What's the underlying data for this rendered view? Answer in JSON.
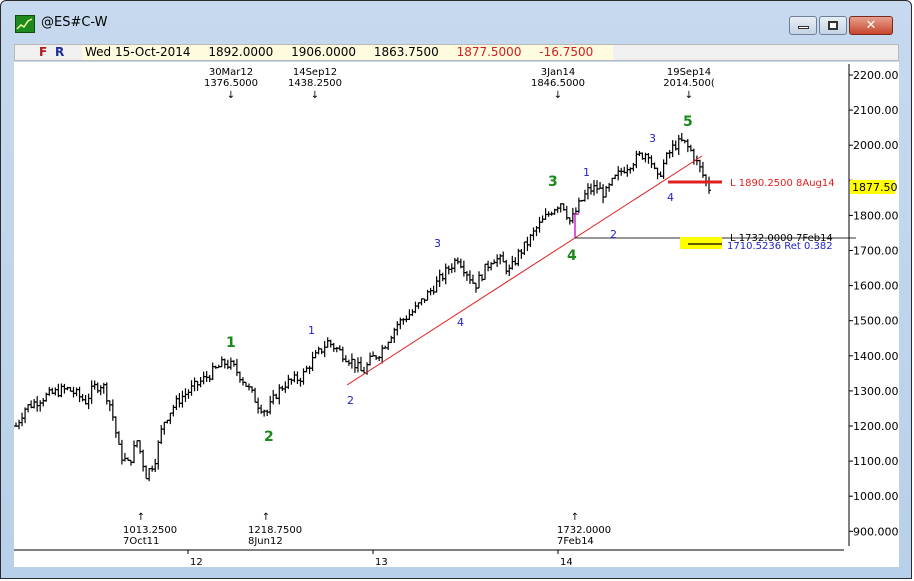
{
  "window": {
    "title": "@ES#C-W",
    "buttons": {
      "minimize": "minimize",
      "maximize": "maximize",
      "close": "close"
    }
  },
  "infobar": {
    "f_label": "F",
    "r_label": "R",
    "date": "Wed 15-Oct-2014",
    "open": "1892.0000",
    "high": "1906.0000",
    "low": "1863.7500",
    "close": "1877.5000",
    "change": "-16.7500"
  },
  "colors": {
    "bars": "#000000",
    "trendline": "#e02020",
    "wave_primary": "#1a8a1a",
    "wave_minor": "#2222cc",
    "last_price_bg": "#ffff00",
    "magenta_marker": "#d020d0"
  },
  "chart_data": {
    "type": "ohlc",
    "title": "@ES#C-W",
    "xlabel": "",
    "ylabel": "",
    "ylim": [
      900,
      2200
    ],
    "y_ticks": [
      "2200.00",
      "2100.00",
      "2000.00",
      "1900.00",
      "1800.00",
      "1700.00",
      "1600.00",
      "1500.00",
      "1400.00",
      "1300.00",
      "1200.00",
      "1100.00",
      "1000.00",
      "900.000"
    ],
    "x_ticks": [
      "12",
      "13",
      "14"
    ],
    "last_price": "1877.50",
    "grid": false,
    "swing_highs": [
      {
        "date": "30Mar12",
        "price": "1376.5000"
      },
      {
        "date": "14Sep12",
        "price": "1438.2500"
      },
      {
        "date": "3Jan14",
        "price": "1846.5000"
      },
      {
        "date": "19Sep14",
        "price": "2014.500("
      }
    ],
    "swing_lows": [
      {
        "price": "1013.2500",
        "date": "7Oct11"
      },
      {
        "price": "1218.7500",
        "date": "8Jun12"
      },
      {
        "price": "1732.0000",
        "date": "7Feb14"
      }
    ],
    "horizontal_levels": [
      {
        "label": "L 1890.2500 8Aug14",
        "price": 1890.25,
        "color": "#e02020"
      },
      {
        "label": "L 1732.0000 7Feb14",
        "price": 1732.0,
        "color": "#000000"
      },
      {
        "label": "1710.5236 Ret 0.382",
        "price": 1710.52,
        "color": "#2222cc"
      }
    ],
    "wave_labels_primary": [
      "1",
      "2",
      "3",
      "4",
      "5"
    ],
    "wave_labels_minor": [
      "1",
      "2",
      "3",
      "4",
      "1",
      "2",
      "3",
      "4"
    ],
    "approx_weekly_closes": [
      1200,
      1250,
      1265,
      1280,
      1290,
      1300,
      1305,
      1290,
      1270,
      1310,
      1320,
      1250,
      1120,
      1090,
      1160,
      1060,
      1100,
      1210,
      1250,
      1280,
      1300,
      1320,
      1340,
      1360,
      1380,
      1370,
      1340,
      1300,
      1260,
      1240,
      1290,
      1320,
      1330,
      1340,
      1380,
      1410,
      1440,
      1420,
      1400,
      1380,
      1350,
      1390,
      1410,
      1450,
      1490,
      1510,
      1530,
      1560,
      1590,
      1620,
      1650,
      1680,
      1640,
      1600,
      1640,
      1680,
      1670,
      1640,
      1690,
      1720,
      1760,
      1790,
      1820,
      1840,
      1780,
      1830,
      1870,
      1880,
      1860,
      1900,
      1930,
      1950,
      1970,
      1980,
      1900,
      1960,
      2000,
      2010,
      1980,
      1930,
      1877.5
    ]
  },
  "annotations": {
    "top": [
      {
        "line1": "30Mar12",
        "line2": "1376.5000",
        "arrow": "↓"
      },
      {
        "line1": "14Sep12",
        "line2": "1438.2500",
        "arrow": "↓"
      },
      {
        "line1": "3Jan14",
        "line2": "1846.5000",
        "arrow": "↓"
      },
      {
        "line1": "19Sep14",
        "line2": "2014.500(",
        "arrow": "↓"
      }
    ],
    "bottom": [
      {
        "line1": "1013.2500",
        "line2": "7Oct11",
        "arrow": "↑"
      },
      {
        "line1": "1218.7500",
        "line2": "8Jun12",
        "arrow": "↑"
      },
      {
        "line1": "1732.0000",
        "line2": "7Feb14",
        "arrow": "↑"
      }
    ],
    "levels": {
      "red": "L 1890.2500 8Aug14",
      "black": "L 1732.0000 7Feb14",
      "blue": "1710.5236 Ret 0.382"
    },
    "waves": {
      "p1": "1",
      "p2": "2",
      "p3": "3",
      "p4": "4",
      "p5": "5",
      "m1a": "1",
      "m2a": "2",
      "m3a": "3",
      "m4a": "4",
      "m1b": "1",
      "m2b": "2",
      "m3b": "3",
      "m4b": "4"
    }
  },
  "axis": {
    "y": [
      "2200.00",
      "2100.00",
      "2000.00",
      "1900.00",
      "1800.00",
      "1700.00",
      "1600.00",
      "1500.00",
      "1400.00",
      "1300.00",
      "1200.00",
      "1100.00",
      "1000.00",
      "900.000"
    ],
    "x": [
      "12",
      "13",
      "14"
    ],
    "last_price": "1877.50"
  }
}
